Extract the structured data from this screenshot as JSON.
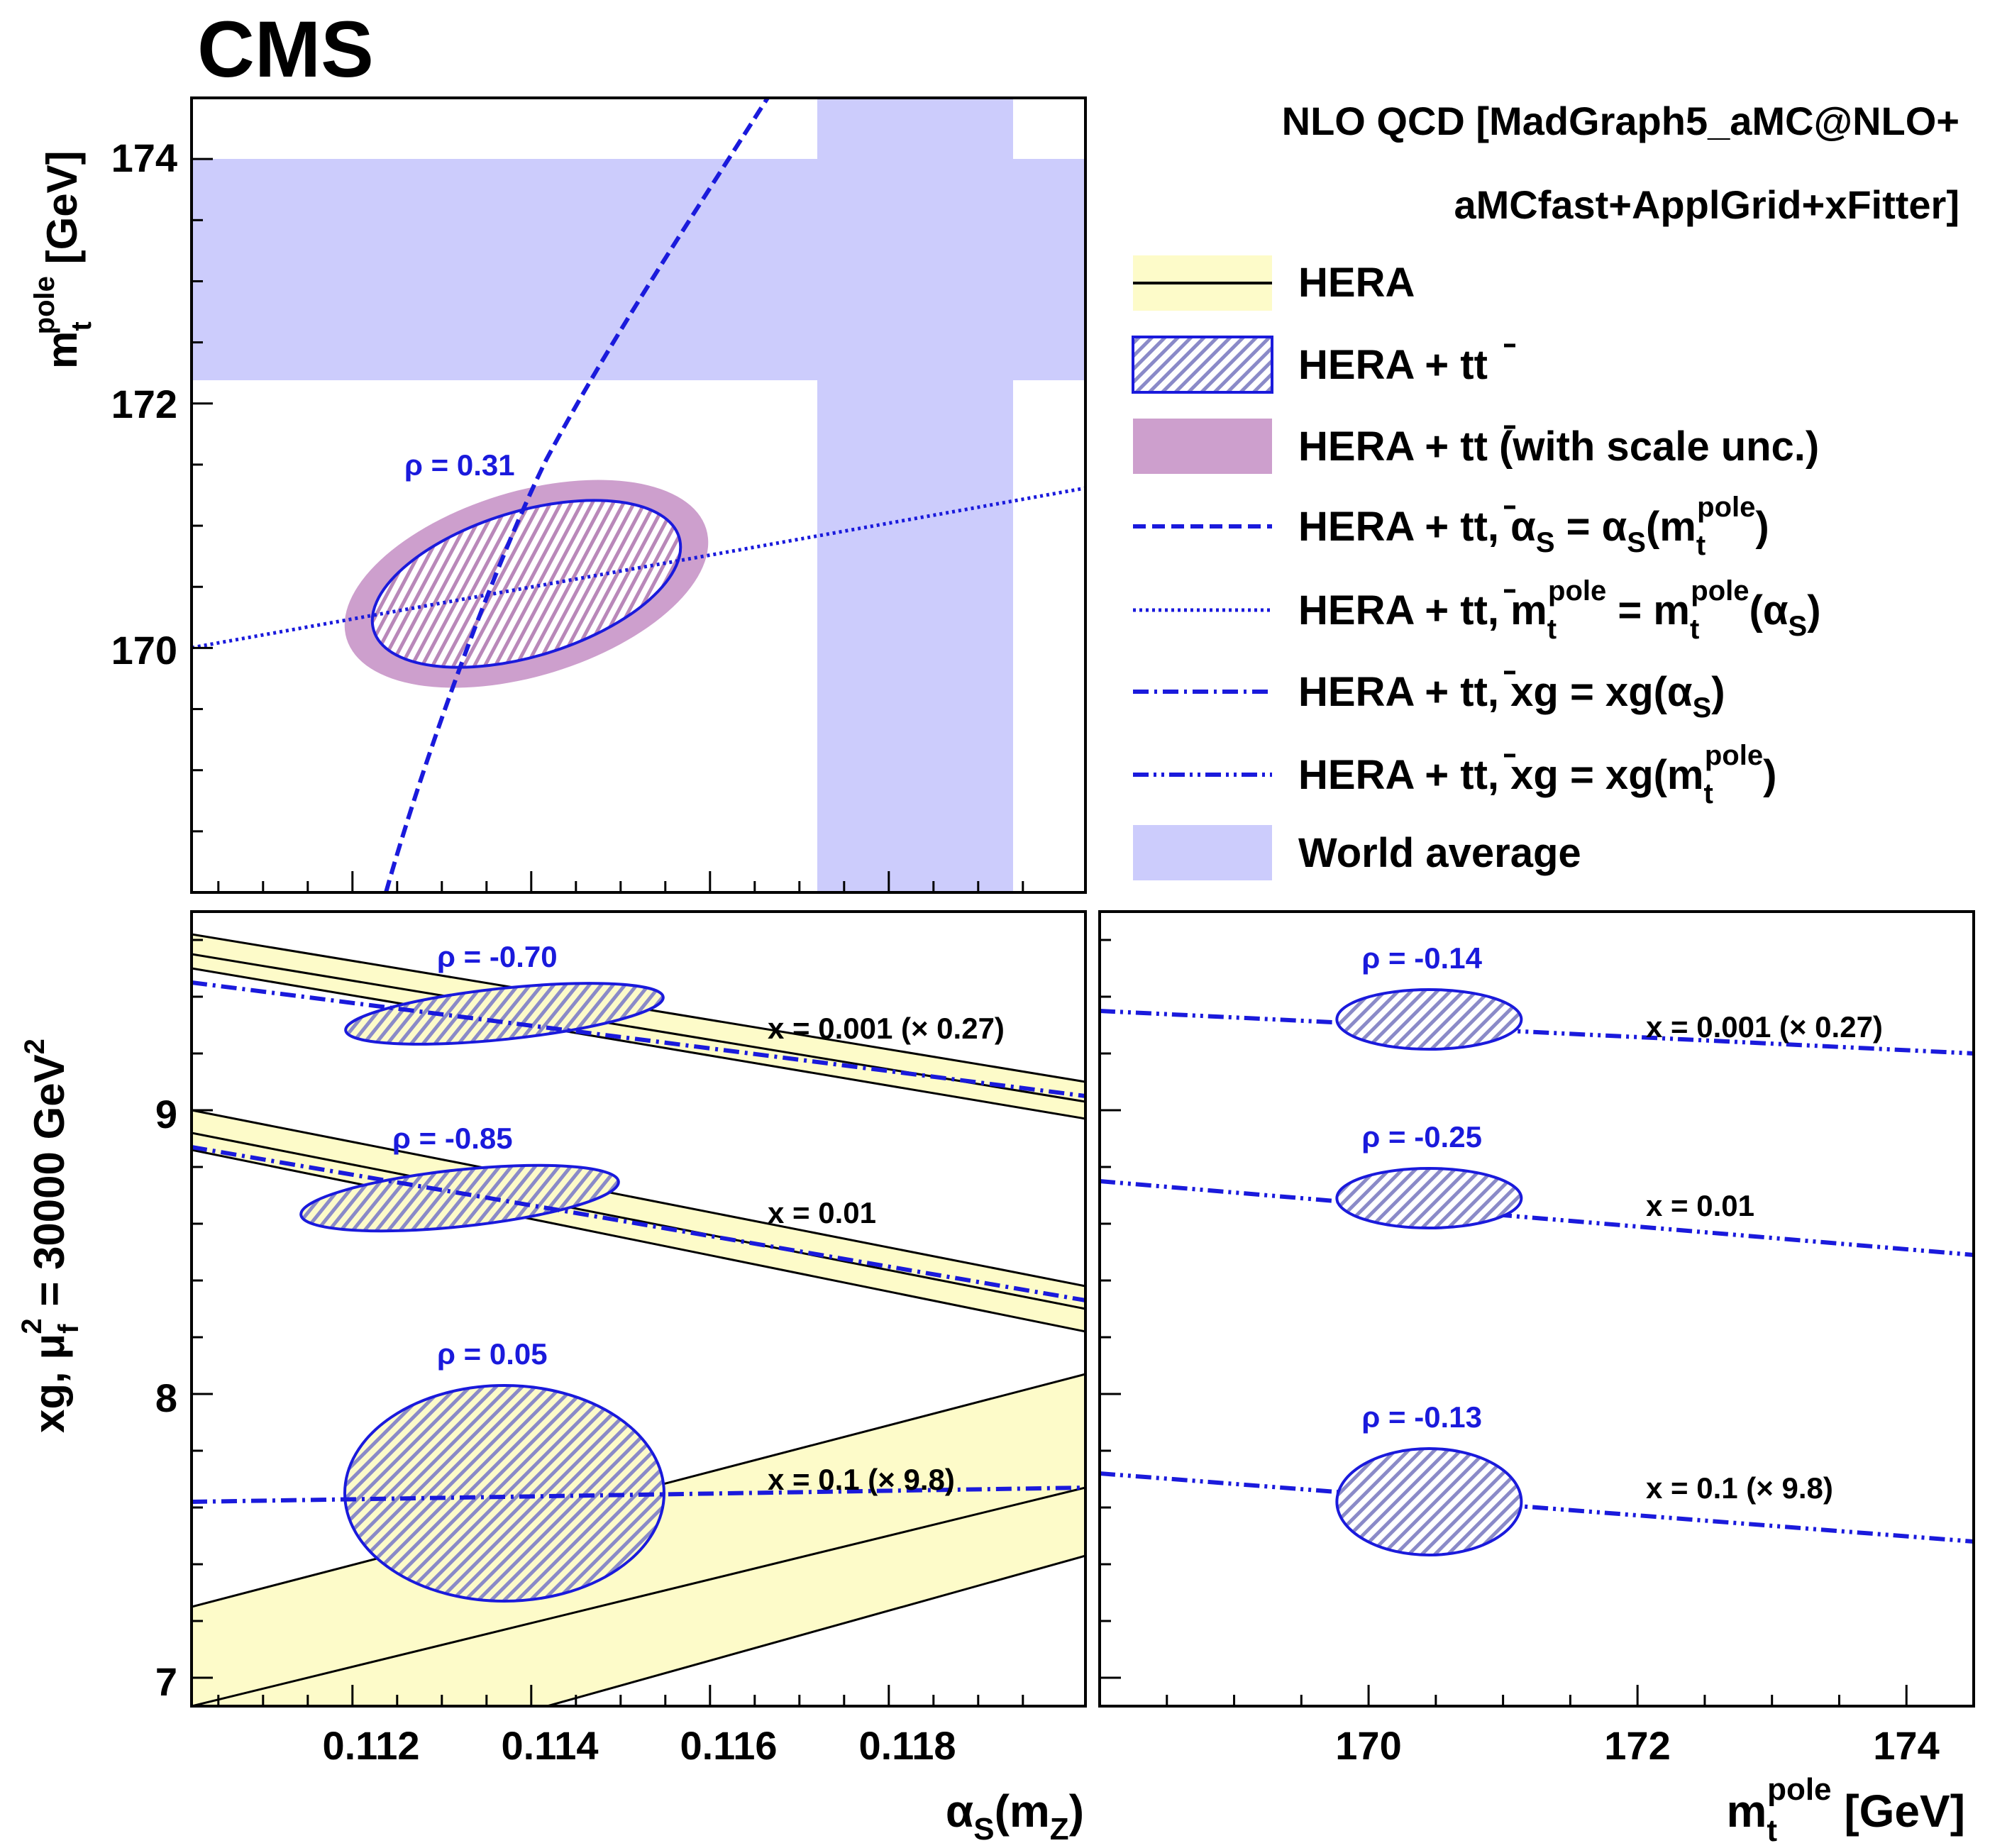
{
  "experiment_label": "CMS",
  "legend": {
    "header_line1": "NLO QCD [MadGraph5_aMC@NLO+",
    "header_line2": "aMCfast+ApplGrid+xFitter]",
    "entries": [
      {
        "id": "hera",
        "label": "HERA",
        "style": "band-line",
        "color": "#fdfbc9"
      },
      {
        "id": "hera-tt",
        "label": "HERA + tt̄",
        "style": "hatched-ellipse",
        "color": "#1a1adc"
      },
      {
        "id": "hera-tt-scale",
        "label": "HERA + tt̄ (with scale unc.)",
        "style": "filled",
        "color": "#cd9fcd"
      },
      {
        "id": "as-fixed",
        "label": "HERA + tt̄,  αS =  αS(mt pole)",
        "style": "dashed",
        "color": "#1a1adc"
      },
      {
        "id": "mt-fixed",
        "label": "HERA + tt̄, mt pole = mt pole(αS)",
        "style": "dotted",
        "color": "#1a1adc"
      },
      {
        "id": "xg-as",
        "label": "HERA + tt̄, xg = xg(αS)",
        "style": "dash-dot",
        "color": "#1a1adc"
      },
      {
        "id": "xg-mt",
        "label": "HERA + tt̄, xg = xg(mt pole)",
        "style": "dash-dot-dot",
        "color": "#1a1adc"
      },
      {
        "id": "world-avg",
        "label": "World average",
        "style": "filled",
        "color": "#ccccfc"
      }
    ]
  },
  "chart_data": [
    {
      "type": "scatter",
      "panel": "top-left",
      "xlabel": "αS(mZ)",
      "ylabel": "mt pole [GeV]",
      "xlim": [
        0.1102,
        0.1202
      ],
      "ylim": [
        168.0,
        174.5
      ],
      "yticks": [
        170,
        172,
        174
      ],
      "annotations": [
        {
          "text": "ρ = 0.31"
        }
      ],
      "world_average": {
        "alphas": [
          0.1171,
          0.1193
        ],
        "mt": [
          172.2,
          174.0
        ]
      },
      "ellipse_fit": {
        "center": [
          0.1139,
          170.55
        ],
        "rho": 0.31
      },
      "curves": {
        "dashed_alphas_of_mt": [
          [
            0.1123,
            168.0
          ],
          [
            0.113,
            169.2
          ],
          [
            0.114,
            171.2
          ],
          [
            0.115,
            172.7
          ],
          [
            0.1166,
            174.5
          ]
        ],
        "dotted_mt_of_alphas": [
          [
            0.1102,
            170.0
          ],
          [
            0.1202,
            171.3
          ]
        ]
      }
    },
    {
      "type": "scatter",
      "panel": "bottom-left",
      "xlabel": "αS(mZ)",
      "ylabel": "xg,  μf² = 30000 GeV²",
      "xlim": [
        0.1102,
        0.1202
      ],
      "ylim": [
        6.9,
        9.7
      ],
      "xticks": [
        "0.112",
        "0.114",
        "0.116",
        "0.118"
      ],
      "yticks": [
        7,
        8,
        9
      ],
      "groups": [
        {
          "label": "x = 0.001 (× 0.27)",
          "rho": "ρ = -0.70",
          "center": [
            0.1137,
            9.34
          ],
          "hera_band": {
            "x": [
              0.1102,
              0.1202
            ],
            "upper": [
              9.62,
              9.1
            ],
            "central": [
              9.55,
              9.03
            ],
            "lower": [
              9.5,
              8.97
            ]
          },
          "dashdot": [
            [
              0.1102,
              9.45
            ],
            [
              0.1202,
              9.05
            ]
          ]
        },
        {
          "label": "x = 0.01",
          "rho": "ρ = -0.85",
          "center": [
            0.1132,
            8.69
          ],
          "hera_band": {
            "x": [
              0.1102,
              0.1202
            ],
            "upper": [
              9.0,
              8.38
            ],
            "central": [
              8.92,
              8.3
            ],
            "lower": [
              8.86,
              8.22
            ]
          },
          "dashdot": [
            [
              0.1102,
              8.87
            ],
            [
              0.1202,
              8.33
            ]
          ]
        },
        {
          "label": "x = 0.1 (× 9.8)",
          "rho": "ρ = 0.05",
          "center": [
            0.1137,
            7.65
          ],
          "hera_band": {
            "x": [
              0.1102,
              0.1202
            ],
            "upper": [
              7.25,
              8.07
            ],
            "central": [
              6.9,
              7.67
            ],
            "lower": [
              6.55,
              7.43
            ]
          },
          "dashdot": [
            [
              0.1102,
              7.62
            ],
            [
              0.1202,
              7.67
            ]
          ]
        }
      ]
    },
    {
      "type": "scatter",
      "panel": "bottom-right",
      "xlabel": "mt pole [GeV]",
      "xlim": [
        168.0,
        174.5
      ],
      "ylim": [
        6.9,
        9.7
      ],
      "xticks": [
        "170",
        "172",
        "174"
      ],
      "groups": [
        {
          "label": "x = 0.001 (× 0.27)",
          "rho": "ρ = -0.14",
          "center": [
            170.45,
            9.32
          ],
          "dashdot": [
            [
              168.0,
              9.35
            ],
            [
              174.5,
              9.2
            ]
          ]
        },
        {
          "label": "x = 0.01",
          "rho": "ρ = -0.25",
          "center": [
            170.45,
            8.69
          ],
          "dashdot": [
            [
              168.0,
              8.75
            ],
            [
              174.5,
              8.49
            ]
          ]
        },
        {
          "label": "x = 0.1 (× 9.8)",
          "rho": "ρ = -0.13",
          "center": [
            170.45,
            7.62
          ],
          "dashdot": [
            [
              168.0,
              7.72
            ],
            [
              174.5,
              7.48
            ]
          ]
        }
      ]
    }
  ]
}
